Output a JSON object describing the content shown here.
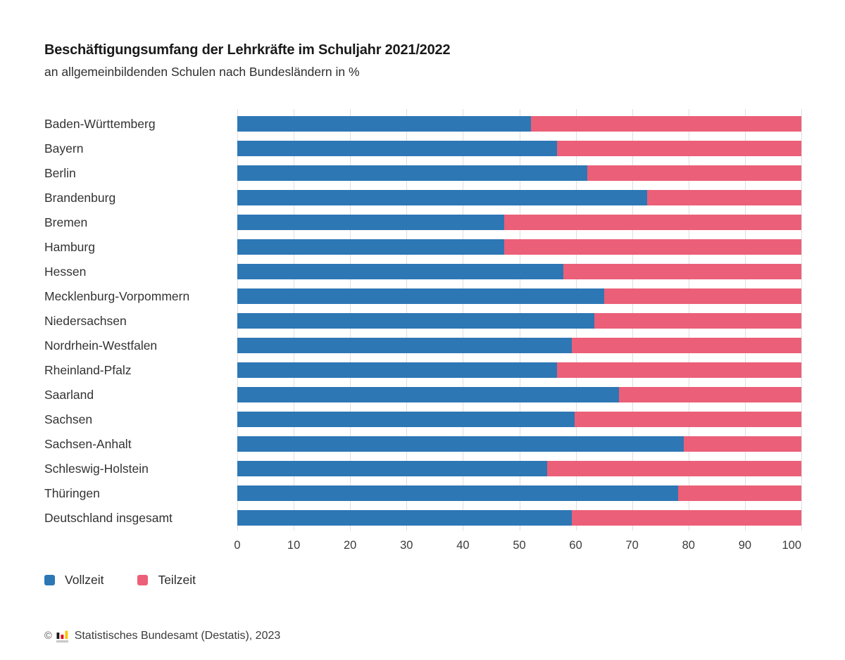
{
  "header": {
    "title": "Beschäftigungsumfang der Lehrkräfte im Schuljahr 2021/2022",
    "subtitle": "an allgemeinbildenden Schulen nach Bundesländern in %"
  },
  "chart_data": {
    "type": "bar",
    "variant": "horizontal-stacked-100",
    "title": "Beschäftigungsumfang der Lehrkräfte im Schuljahr 2021/2022",
    "subtitle": "an allgemeinbildenden Schulen nach Bundesländern in %",
    "unit": "%",
    "categories": [
      "Baden-Württemberg",
      "Bayern",
      "Berlin",
      "Brandenburg",
      "Bremen",
      "Hamburg",
      "Hessen",
      "Mecklenburg-Vorpommern",
      "Niedersachsen",
      "Nordrhein-Westfalen",
      "Rheinland-Pfalz",
      "Saarland",
      "Sachsen",
      "Sachsen-Anhalt",
      "Schleswig-Holstein",
      "Thüringen",
      "Deutschland insgesamt"
    ],
    "series": [
      {
        "name": "Vollzeit",
        "color": "#2d77b5",
        "values": [
          52.0,
          56.7,
          62.0,
          72.6,
          47.3,
          47.3,
          57.8,
          65.0,
          63.3,
          59.3,
          56.7,
          67.7,
          59.8,
          79.2,
          54.9,
          78.1,
          59.3
        ]
      },
      {
        "name": "Teilzeit",
        "color": "#eb5f78",
        "values": [
          48.0,
          43.3,
          38.0,
          27.4,
          52.7,
          52.7,
          42.2,
          35.0,
          36.7,
          40.7,
          43.3,
          32.3,
          40.2,
          20.8,
          45.1,
          21.9,
          40.7
        ]
      }
    ],
    "xlabel": "",
    "ylabel": "",
    "xlim": [
      0,
      100
    ],
    "xticks": [
      0,
      10,
      20,
      30,
      40,
      50,
      60,
      70,
      80,
      90,
      100
    ],
    "grid": true,
    "gridline_color": "#dedede",
    "legend_position": "bottom-left"
  },
  "footer": {
    "copyright_symbol": "©",
    "logo_icon": "destatis-mini-bar-chart-icon",
    "logo_colors": [
      "#1a1a1a",
      "#e2001a",
      "#fdc300",
      "#c9c9c9"
    ],
    "source": "Statistisches Bundesamt (Destatis), 2023"
  }
}
